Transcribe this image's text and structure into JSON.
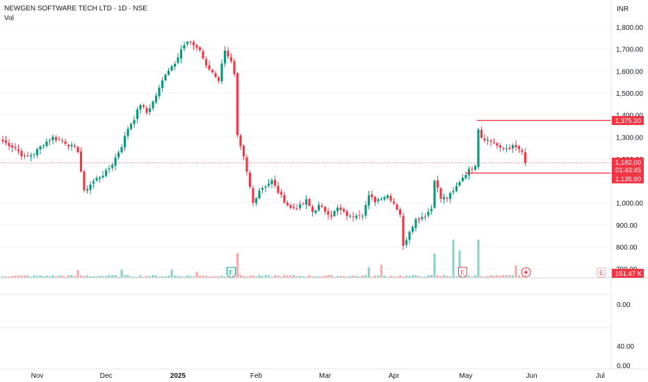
{
  "header": {
    "title": "NEWGEN SOFTWARE TECH LTD · 1D · NSE",
    "indicator": "Vol",
    "currency": "INR"
  },
  "colors": {
    "up": "#089981",
    "down": "#f23645",
    "vol_up": "#8fd3c8",
    "vol_down": "#f7a9a7",
    "level_line": "#f23645",
    "price_label": "#f23645"
  },
  "price_axis": {
    "ticks": [
      "1,800.00",
      "1,700.00",
      "1,600.00",
      "1,500.00",
      "1,400.00",
      "1,300.00",
      "1,200.00",
      "1,000.00",
      "900.00",
      "800.00",
      "700.00"
    ],
    "tick_values": [
      1800,
      1700,
      1600,
      1500,
      1400,
      1300,
      1200,
      1000,
      900,
      800,
      700
    ]
  },
  "price_labels": {
    "resistance": "1,375.30",
    "last_price": "1,182.00",
    "countdown": "01:43:45",
    "support": "1,135.90",
    "volume": "151.47 K"
  },
  "sub_axis": {
    "ticks": [
      "0.00",
      "40.00",
      "0.00"
    ]
  },
  "time_axis": {
    "labels": [
      "Nov",
      "Dec",
      "2025",
      "Feb",
      "Mar",
      "Apr",
      "May",
      "Jun",
      "Jul"
    ]
  },
  "chart_data": {
    "type": "candlestick",
    "title": "NEWGEN SOFTWARE TECH LTD · 1D · NSE",
    "currency": "INR",
    "ylim": [
      700,
      1830
    ],
    "resistance_level": 1375.3,
    "support_level": 1135.9,
    "last_price": 1182.0,
    "anchors": [
      [
        0,
        1280
      ],
      [
        4,
        1250
      ],
      [
        7,
        1205
      ],
      [
        10,
        1225
      ],
      [
        13,
        1270
      ],
      [
        16,
        1298
      ],
      [
        20,
        1275
      ],
      [
        24,
        1238
      ],
      [
        26,
        1050
      ],
      [
        28,
        1085
      ],
      [
        30,
        1110
      ],
      [
        33,
        1140
      ],
      [
        35,
        1178
      ],
      [
        38,
        1260
      ],
      [
        40,
        1340
      ],
      [
        42,
        1385
      ],
      [
        44,
        1450
      ],
      [
        46,
        1410
      ],
      [
        48,
        1460
      ],
      [
        50,
        1520
      ],
      [
        52,
        1590
      ],
      [
        55,
        1640
      ],
      [
        57,
        1700
      ],
      [
        59,
        1730
      ],
      [
        61,
        1720
      ],
      [
        63,
        1695
      ],
      [
        65,
        1620
      ],
      [
        67,
        1595
      ],
      [
        69,
        1560
      ],
      [
        71,
        1700
      ],
      [
        73,
        1640
      ],
      [
        74,
        1580
      ],
      [
        75,
        1300
      ],
      [
        76,
        1250
      ],
      [
        77,
        1205
      ],
      [
        79,
        1070
      ],
      [
        80,
        1000
      ],
      [
        82,
        1060
      ],
      [
        84,
        1080
      ],
      [
        86,
        1100
      ],
      [
        88,
        1050
      ],
      [
        90,
        1010
      ],
      [
        92,
        975
      ],
      [
        95,
        985
      ],
      [
        97,
        1010
      ],
      [
        99,
        960
      ],
      [
        101,
        985
      ],
      [
        103,
        965
      ],
      [
        105,
        945
      ],
      [
        107,
        975
      ],
      [
        109,
        955
      ],
      [
        111,
        935
      ],
      [
        113,
        950
      ],
      [
        115,
        950
      ],
      [
        117,
        1030
      ],
      [
        119,
        1010
      ],
      [
        121,
        1025
      ],
      [
        123,
        1035
      ],
      [
        125,
        1000
      ],
      [
        127,
        950
      ],
      [
        128,
        800
      ],
      [
        130,
        875
      ],
      [
        132,
        925
      ],
      [
        135,
        945
      ],
      [
        137,
        975
      ],
      [
        138,
        1110
      ],
      [
        140,
        1020
      ],
      [
        142,
        1025
      ],
      [
        144,
        1050
      ],
      [
        146,
        1100
      ],
      [
        148,
        1135
      ],
      [
        150,
        1160
      ],
      [
        151,
        1175
      ],
      [
        152,
        1340
      ],
      [
        153,
        1300
      ],
      [
        155,
        1285
      ],
      [
        157,
        1275
      ],
      [
        159,
        1245
      ],
      [
        161,
        1250
      ],
      [
        163,
        1255
      ],
      [
        165,
        1245
      ],
      [
        166,
        1225
      ],
      [
        167,
        1185
      ]
    ],
    "volume": {
      "avg": 0.13,
      "ylim": [
        0,
        4
      ],
      "spikes": [
        [
          24,
          0.5
        ],
        [
          38,
          0.55
        ],
        [
          54,
          0.55
        ],
        [
          62,
          0.4
        ],
        [
          75,
          1.6
        ],
        [
          117,
          0.7
        ],
        [
          121,
          0.85
        ],
        [
          138,
          1.6
        ],
        [
          144,
          2.5
        ],
        [
          146,
          1.8
        ],
        [
          152,
          2.5
        ],
        [
          164,
          0.8
        ]
      ]
    },
    "earnings_markers": [
      {
        "index": 73,
        "label": "E"
      },
      {
        "index": 147,
        "label": "E"
      }
    ],
    "time_labels": [
      {
        "index": 11,
        "label": "Nov"
      },
      {
        "index": 33,
        "label": "Dec"
      },
      {
        "index": 56,
        "label": "2025"
      },
      {
        "index": 81,
        "label": "Feb"
      },
      {
        "index": 103,
        "label": "Mar"
      },
      {
        "index": 125,
        "label": "Apr"
      },
      {
        "index": 148,
        "label": "May"
      },
      {
        "index": 169,
        "label": "Jun"
      },
      {
        "index": 191,
        "label": "Jul"
      }
    ]
  }
}
